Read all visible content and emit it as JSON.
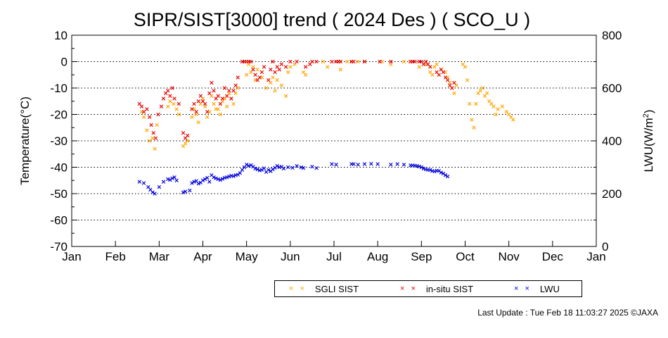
{
  "chart_data": {
    "type": "scatter",
    "title": "SIPR/SIST[3000] trend ( 2024 Des ) ( SCO_U )",
    "ylabel": "Temperature(°C)",
    "y2label": "LWU(W/m²)",
    "ylim": [
      -70,
      10
    ],
    "y2lim": [
      0,
      800
    ],
    "xlim": [
      0,
      12
    ],
    "x_unit": "month (0 = start of Jan)",
    "yticks": [
      "10",
      "0",
      "-10",
      "-20",
      "-30",
      "-40",
      "-50",
      "-60",
      "-70"
    ],
    "y2ticks": [
      "800",
      "600",
      "400",
      "200",
      "0"
    ],
    "month_labels": [
      "Jan",
      "Feb",
      "Mar",
      "Apr",
      "May",
      "Jun",
      "Jul",
      "Aug",
      "Sep",
      "Oct",
      "Nov",
      "Dec",
      "Jan"
    ],
    "grid": "horizontal dotted",
    "legend_position": "bottom",
    "series": [
      {
        "name": "SGLI SIST",
        "color": "#ffa500",
        "axis": "left",
        "points": [
          [
            1.6,
            -19
          ],
          [
            1.65,
            -21
          ],
          [
            1.72,
            -26
          ],
          [
            1.78,
            -30
          ],
          [
            1.85,
            -29
          ],
          [
            1.9,
            -33
          ],
          [
            1.95,
            -24
          ],
          [
            2.2,
            -17
          ],
          [
            2.25,
            -15
          ],
          [
            2.33,
            -16
          ],
          [
            2.4,
            -18
          ],
          [
            2.45,
            -20
          ],
          [
            2.55,
            -32
          ],
          [
            2.6,
            -31
          ],
          [
            2.65,
            -30
          ],
          [
            2.75,
            -21
          ],
          [
            2.8,
            -18
          ],
          [
            2.85,
            -20
          ],
          [
            2.9,
            -23
          ],
          [
            2.95,
            -16
          ],
          [
            3.0,
            -14
          ],
          [
            3.05,
            -17
          ],
          [
            3.1,
            -21
          ],
          [
            3.15,
            -19
          ],
          [
            3.2,
            -13
          ],
          [
            3.25,
            -16
          ],
          [
            3.3,
            -18
          ],
          [
            3.35,
            -18
          ],
          [
            3.4,
            -20
          ],
          [
            3.45,
            -15
          ],
          [
            3.5,
            -14
          ],
          [
            3.55,
            -17
          ],
          [
            3.6,
            -12
          ],
          [
            3.65,
            -14
          ],
          [
            3.7,
            -16
          ],
          [
            3.75,
            -12
          ],
          [
            3.8,
            -10
          ],
          [
            4.0,
            -5
          ],
          [
            4.05,
            -1
          ],
          [
            4.1,
            -4
          ],
          [
            4.15,
            -2
          ],
          [
            4.2,
            -7
          ],
          [
            4.25,
            -3
          ],
          [
            4.35,
            -6
          ],
          [
            4.45,
            -10
          ],
          [
            4.55,
            -8
          ],
          [
            4.6,
            -6
          ],
          [
            4.65,
            -11
          ],
          [
            4.7,
            -7
          ],
          [
            4.8,
            -9
          ],
          [
            4.9,
            -13
          ],
          [
            4.95,
            -4
          ],
          [
            5.0,
            -2
          ],
          [
            5.1,
            -1
          ],
          [
            5.3,
            -4
          ],
          [
            5.35,
            -5
          ],
          [
            5.75,
            0
          ],
          [
            5.85,
            -2
          ],
          [
            6.1,
            0
          ],
          [
            6.15,
            -3
          ],
          [
            6.3,
            0
          ],
          [
            6.4,
            0
          ],
          [
            6.55,
            0
          ],
          [
            6.7,
            0
          ],
          [
            7.1,
            0
          ],
          [
            7.3,
            -1
          ],
          [
            7.6,
            0
          ],
          [
            7.75,
            0
          ],
          [
            7.95,
            -2
          ],
          [
            8.1,
            -1
          ],
          [
            8.2,
            -4
          ],
          [
            8.25,
            -5
          ],
          [
            8.3,
            -2
          ],
          [
            8.35,
            -1
          ],
          [
            8.45,
            -3
          ],
          [
            8.55,
            -4
          ],
          [
            8.6,
            -6
          ],
          [
            8.65,
            -8
          ],
          [
            8.7,
            -10
          ],
          [
            8.75,
            -12
          ],
          [
            8.8,
            -9
          ],
          [
            8.95,
            -1
          ],
          [
            9.0,
            -2
          ],
          [
            9.05,
            -7
          ],
          [
            9.1,
            -16
          ],
          [
            9.15,
            -22
          ],
          [
            9.2,
            -25
          ],
          [
            9.25,
            -16
          ],
          [
            9.3,
            -12
          ],
          [
            9.35,
            -11
          ],
          [
            9.4,
            -10
          ],
          [
            9.45,
            -13
          ],
          [
            9.5,
            -12
          ],
          [
            9.55,
            -15
          ],
          [
            9.6,
            -16
          ],
          [
            9.65,
            -17
          ],
          [
            9.7,
            -20
          ],
          [
            9.75,
            -18
          ],
          [
            9.85,
            -17
          ],
          [
            9.95,
            -19
          ],
          [
            10.0,
            -20
          ],
          [
            10.05,
            -21
          ],
          [
            10.1,
            -22
          ]
        ]
      },
      {
        "name": "in-situ SIST",
        "color": "#e60000",
        "axis": "left",
        "points": [
          [
            1.55,
            -16
          ],
          [
            1.6,
            -17
          ],
          [
            1.65,
            -19
          ],
          [
            1.72,
            -18
          ],
          [
            1.78,
            -21
          ],
          [
            1.82,
            -24
          ],
          [
            1.87,
            -27
          ],
          [
            1.92,
            -29
          ],
          [
            1.98,
            -20
          ],
          [
            2.05,
            -17
          ],
          [
            2.1,
            -14
          ],
          [
            2.15,
            -12
          ],
          [
            2.2,
            -11
          ],
          [
            2.25,
            -13
          ],
          [
            2.3,
            -10
          ],
          [
            2.35,
            -14
          ],
          [
            2.45,
            -16
          ],
          [
            2.55,
            -27
          ],
          [
            2.6,
            -29
          ],
          [
            2.65,
            -28
          ],
          [
            2.75,
            -18
          ],
          [
            2.8,
            -16
          ],
          [
            2.85,
            -19
          ],
          [
            2.9,
            -15
          ],
          [
            2.95,
            -13
          ],
          [
            3.0,
            -15
          ],
          [
            3.05,
            -16
          ],
          [
            3.1,
            -19
          ],
          [
            3.15,
            -12
          ],
          [
            3.2,
            -8
          ],
          [
            3.25,
            -11
          ],
          [
            3.3,
            -14
          ],
          [
            3.35,
            -13
          ],
          [
            3.4,
            -16
          ],
          [
            3.45,
            -14
          ],
          [
            3.5,
            -10
          ],
          [
            3.55,
            -13
          ],
          [
            3.6,
            -11
          ],
          [
            3.65,
            -14
          ],
          [
            3.7,
            -11
          ],
          [
            3.75,
            -9
          ],
          [
            3.8,
            -6
          ],
          [
            3.9,
            0
          ],
          [
            3.95,
            0
          ],
          [
            4.0,
            0
          ],
          [
            4.05,
            0
          ],
          [
            4.1,
            0
          ],
          [
            4.15,
            -3
          ],
          [
            4.2,
            -5
          ],
          [
            4.25,
            -7
          ],
          [
            4.3,
            -6
          ],
          [
            4.35,
            -4
          ],
          [
            4.4,
            -2
          ],
          [
            4.5,
            -7
          ],
          [
            4.55,
            -3
          ],
          [
            4.6,
            0
          ],
          [
            4.65,
            -4
          ],
          [
            4.7,
            -2
          ],
          [
            4.75,
            -3
          ],
          [
            4.8,
            -1
          ],
          [
            4.9,
            -2
          ],
          [
            5.0,
            0
          ],
          [
            5.15,
            0
          ],
          [
            5.35,
            -2
          ],
          [
            5.45,
            -1
          ],
          [
            5.5,
            0
          ],
          [
            5.6,
            0
          ],
          [
            5.95,
            0
          ],
          [
            6.05,
            0
          ],
          [
            6.1,
            0
          ],
          [
            6.15,
            0
          ],
          [
            6.4,
            0
          ],
          [
            6.45,
            0
          ],
          [
            6.7,
            0
          ],
          [
            7.05,
            0
          ],
          [
            7.3,
            0
          ],
          [
            7.75,
            0
          ],
          [
            7.8,
            0
          ],
          [
            7.85,
            0
          ],
          [
            7.95,
            0
          ],
          [
            8.0,
            0
          ],
          [
            8.05,
            -1
          ],
          [
            8.1,
            0
          ],
          [
            8.15,
            -1
          ],
          [
            8.2,
            -2
          ],
          [
            8.35,
            -4
          ],
          [
            8.4,
            -5
          ],
          [
            8.45,
            -3
          ],
          [
            8.5,
            -4
          ],
          [
            8.55,
            -6
          ],
          [
            8.6,
            -7
          ],
          [
            8.65,
            -9
          ],
          [
            8.7,
            -10
          ],
          [
            8.75,
            -8
          ]
        ]
      },
      {
        "name": "LWU",
        "color": "#0000dd",
        "axis": "right",
        "points": [
          [
            1.55,
            245
          ],
          [
            1.65,
            240
          ],
          [
            1.75,
            225
          ],
          [
            1.8,
            215
          ],
          [
            1.85,
            205
          ],
          [
            1.9,
            200
          ],
          [
            2.0,
            225
          ],
          [
            2.1,
            245
          ],
          [
            2.2,
            255
          ],
          [
            2.25,
            252
          ],
          [
            2.3,
            258
          ],
          [
            2.35,
            262
          ],
          [
            2.4,
            250
          ],
          [
            2.55,
            205
          ],
          [
            2.6,
            208
          ],
          [
            2.7,
            212
          ],
          [
            2.75,
            240
          ],
          [
            2.8,
            245
          ],
          [
            2.85,
            248
          ],
          [
            2.9,
            238
          ],
          [
            2.95,
            242
          ],
          [
            3.0,
            250
          ],
          [
            3.05,
            255
          ],
          [
            3.1,
            260
          ],
          [
            3.15,
            245
          ],
          [
            3.2,
            270
          ],
          [
            3.25,
            262
          ],
          [
            3.3,
            258
          ],
          [
            3.35,
            255
          ],
          [
            3.4,
            252
          ],
          [
            3.45,
            256
          ],
          [
            3.5,
            260
          ],
          [
            3.55,
            262
          ],
          [
            3.6,
            265
          ],
          [
            3.65,
            268
          ],
          [
            3.7,
            266
          ],
          [
            3.75,
            270
          ],
          [
            3.8,
            272
          ],
          [
            3.85,
            278
          ],
          [
            3.9,
            290
          ],
          [
            3.95,
            300
          ],
          [
            4.0,
            310
          ],
          [
            4.05,
            305
          ],
          [
            4.1,
            308
          ],
          [
            4.15,
            302
          ],
          [
            4.2,
            295
          ],
          [
            4.25,
            292
          ],
          [
            4.3,
            288
          ],
          [
            4.35,
            290
          ],
          [
            4.4,
            296
          ],
          [
            4.45,
            282
          ],
          [
            4.5,
            290
          ],
          [
            4.55,
            285
          ],
          [
            4.6,
            292
          ],
          [
            4.65,
            298
          ],
          [
            4.7,
            305
          ],
          [
            4.75,
            300
          ],
          [
            4.8,
            302
          ],
          [
            4.85,
            295
          ],
          [
            4.95,
            300
          ],
          [
            5.05,
            298
          ],
          [
            5.15,
            305
          ],
          [
            5.25,
            300
          ],
          [
            5.3,
            297
          ],
          [
            5.5,
            302
          ],
          [
            5.6,
            297
          ],
          [
            5.95,
            312
          ],
          [
            6.05,
            310
          ],
          [
            6.4,
            312
          ],
          [
            6.45,
            312
          ],
          [
            6.55,
            310
          ],
          [
            6.7,
            312
          ],
          [
            6.85,
            313
          ],
          [
            7.0,
            312
          ],
          [
            7.3,
            310
          ],
          [
            7.45,
            312
          ],
          [
            7.6,
            310
          ],
          [
            7.75,
            307
          ],
          [
            7.8,
            307
          ],
          [
            7.85,
            306
          ],
          [
            7.9,
            305
          ],
          [
            7.95,
            303
          ],
          [
            8.0,
            300
          ],
          [
            8.05,
            295
          ],
          [
            8.1,
            292
          ],
          [
            8.15,
            290
          ],
          [
            8.2,
            290
          ],
          [
            8.25,
            286
          ],
          [
            8.3,
            284
          ],
          [
            8.35,
            287
          ],
          [
            8.4,
            286
          ],
          [
            8.45,
            280
          ],
          [
            8.5,
            276
          ],
          [
            8.55,
            270
          ],
          [
            8.6,
            265
          ]
        ]
      }
    ]
  },
  "legend": {
    "items": [
      {
        "marker": "× ×",
        "label": "SGLI SIST",
        "color": "#ffa500"
      },
      {
        "marker": "× ×",
        "label": "in-situ SIST",
        "color": "#e60000"
      },
      {
        "marker": "× ×",
        "label": "LWU",
        "color": "#0000dd"
      }
    ]
  },
  "footer": "Last Update : Tue Feb 18 11:03:27 2025  ©JAXA"
}
